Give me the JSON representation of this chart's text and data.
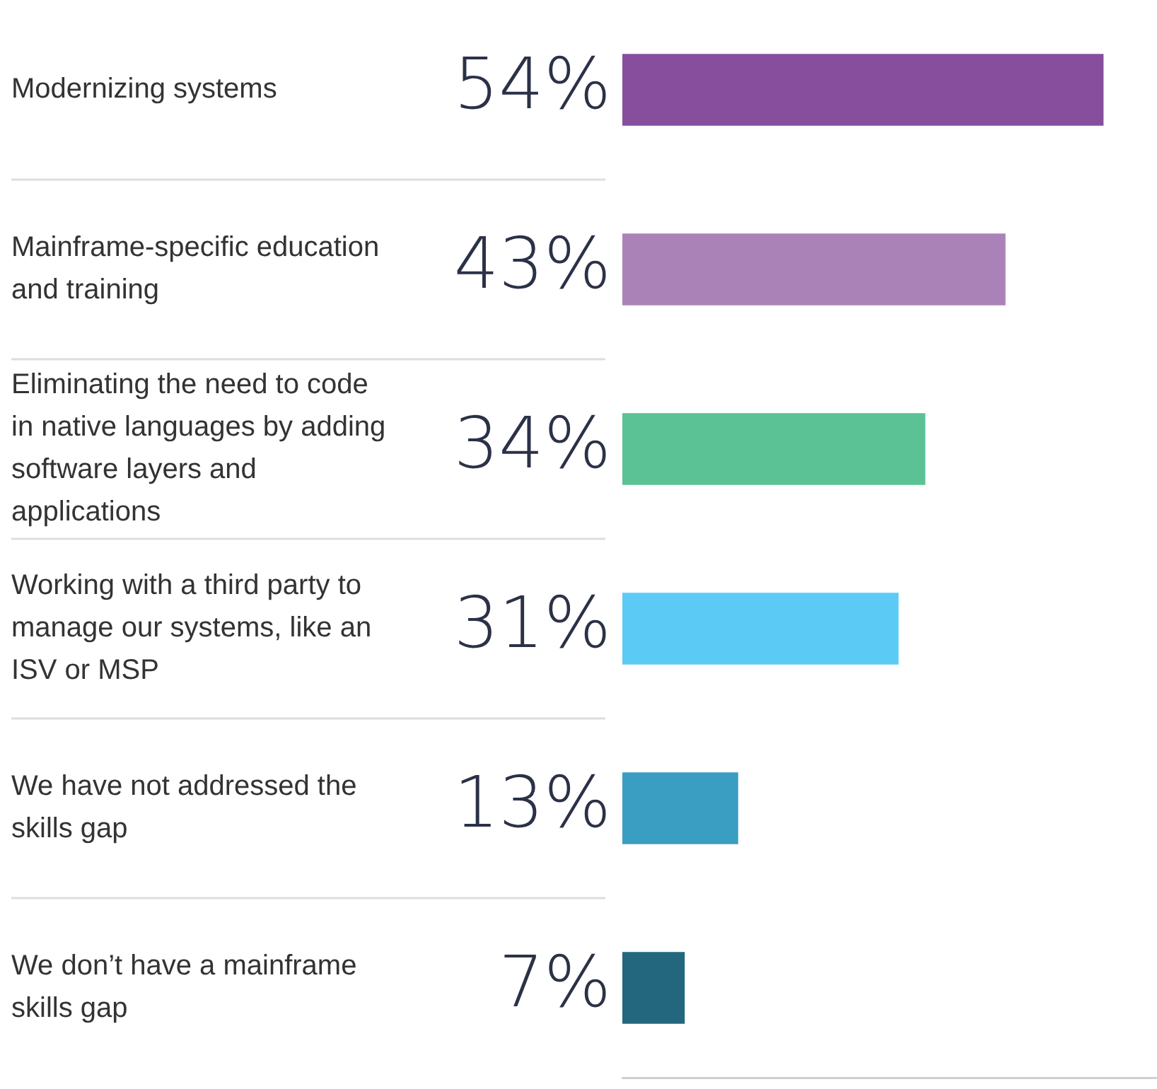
{
  "chart_data": {
    "type": "bar",
    "orientation": "horizontal",
    "categories": [
      "Modernizing systems",
      "Mainframe-specific education and training",
      "Eliminating the need to code in native languages by adding software layers and applications",
      "Working with a third party to manage our systems, like an ISV or MSP",
      "We have not addressed the skills gap",
      "We don’t have a mainframe skills gap"
    ],
    "values": [
      54,
      43,
      34,
      31,
      13,
      7
    ],
    "colors": [
      "#874e9e",
      "#ab82b8",
      "#5bc295",
      "#5bcbf5",
      "#3a9dc2",
      "#22677e"
    ],
    "value_labels": [
      "54%",
      "43%",
      "34%",
      "31%",
      "13%",
      "7%"
    ],
    "legend": false
  }
}
